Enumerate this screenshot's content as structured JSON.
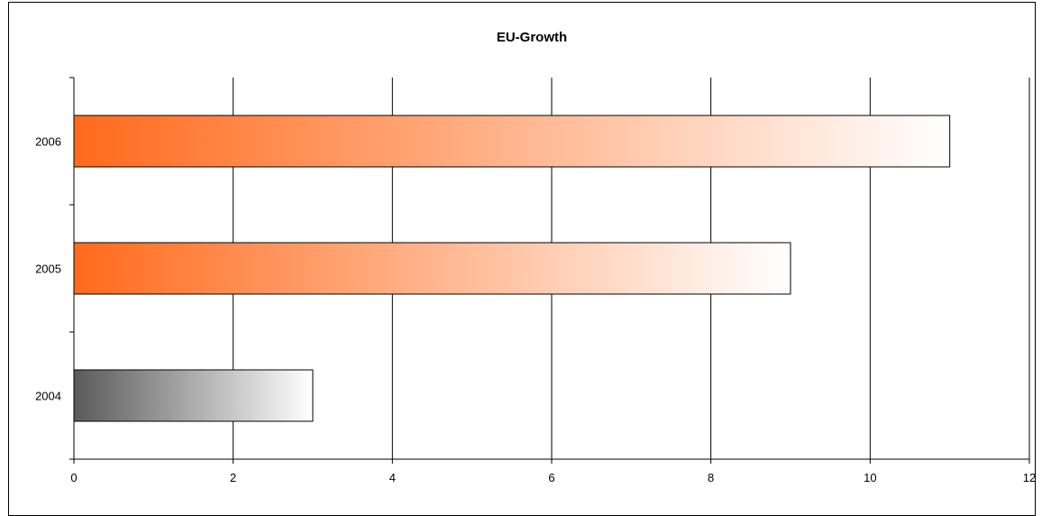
{
  "chart_data": {
    "type": "bar",
    "orientation": "horizontal",
    "title": "EU-Growth",
    "xlabel": "",
    "ylabel": "",
    "categories": [
      "2004",
      "2005",
      "2006"
    ],
    "values": [
      3,
      9,
      11
    ],
    "xlim": [
      0,
      12
    ],
    "x_ticks": [
      "0",
      "2",
      "4",
      "6",
      "8",
      "10",
      "12"
    ],
    "grid": "vertical",
    "legend": "none",
    "bar_gradients": [
      {
        "from": "#5a5a5a",
        "to": "#ffffff"
      },
      {
        "from": "#ff6a1c",
        "to": "#ffffff"
      },
      {
        "from": "#ff6a1c",
        "to": "#ffffff"
      }
    ]
  }
}
